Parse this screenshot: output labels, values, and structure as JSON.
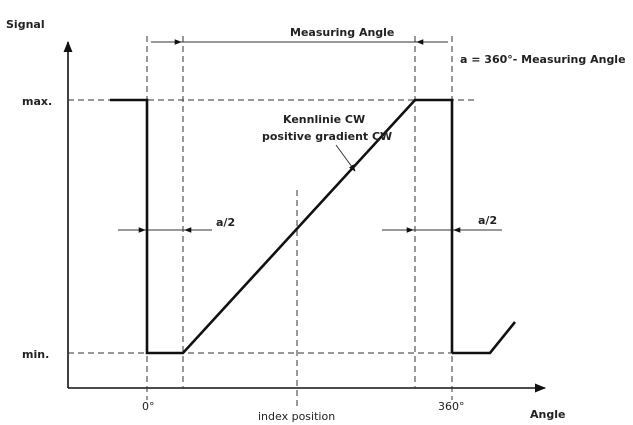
{
  "axes": {
    "y_label": "Signal",
    "x_label": "Angle",
    "y_max_label": "max.",
    "y_min_label": "min.",
    "x_zero_label": "0°",
    "x_full_label": "360°",
    "index_label": "index position"
  },
  "annotations": {
    "measuring_angle": "Measuring Angle",
    "formula": "a = 360°- Measuring Angle",
    "half_a_left": "a/2",
    "half_a_right": "a/2",
    "curve_line1": "Kennlinie CW",
    "curve_line2": "positive gradient CW"
  },
  "colors": {
    "line": "#111111",
    "guide": "#333333",
    "background": "#ffffff"
  }
}
